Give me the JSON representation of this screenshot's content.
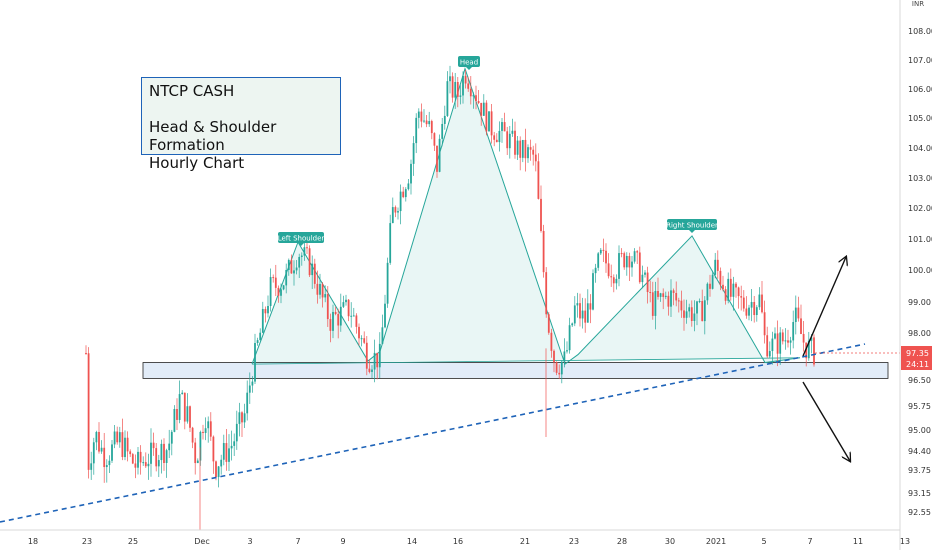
{
  "info_box": {
    "line1": "NTCP CASH",
    "line2": "Head & Shoulder Formation",
    "line3": "Hourly Chart"
  },
  "currency": "INR",
  "chart_data": {
    "type": "candlestick",
    "title": "",
    "y_ticks": [
      92.55,
      93.15,
      93.75,
      94.4,
      95.0,
      95.75,
      96.5,
      97.35,
      98.0,
      99.0,
      100.0,
      101.0,
      102.0,
      103.0,
      104.0,
      105.0,
      106.0,
      107.0,
      108.0
    ],
    "x_tick_labels": [
      "18",
      "23",
      "25",
      "Dec",
      "3",
      "7",
      "9",
      "14",
      "16",
      "21",
      "23",
      "28",
      "30",
      "2021",
      "5",
      "7",
      "11",
      "13"
    ],
    "last_price": "97.35",
    "countdown": "24:11",
    "pattern_points": [
      {
        "label": "Left Shoulder",
        "value": 100.9
      },
      {
        "label": "Head",
        "value": 106.7
      },
      {
        "label": "Right Shoulder",
        "value": 101.1
      }
    ],
    "support_zone": [
      96.55,
      97.05
    ],
    "colors": {
      "up": "#26a69a",
      "down": "#ef5350",
      "pattern": "#26a69a",
      "trendline": "#1e63b8",
      "arrow": "#111111"
    }
  }
}
